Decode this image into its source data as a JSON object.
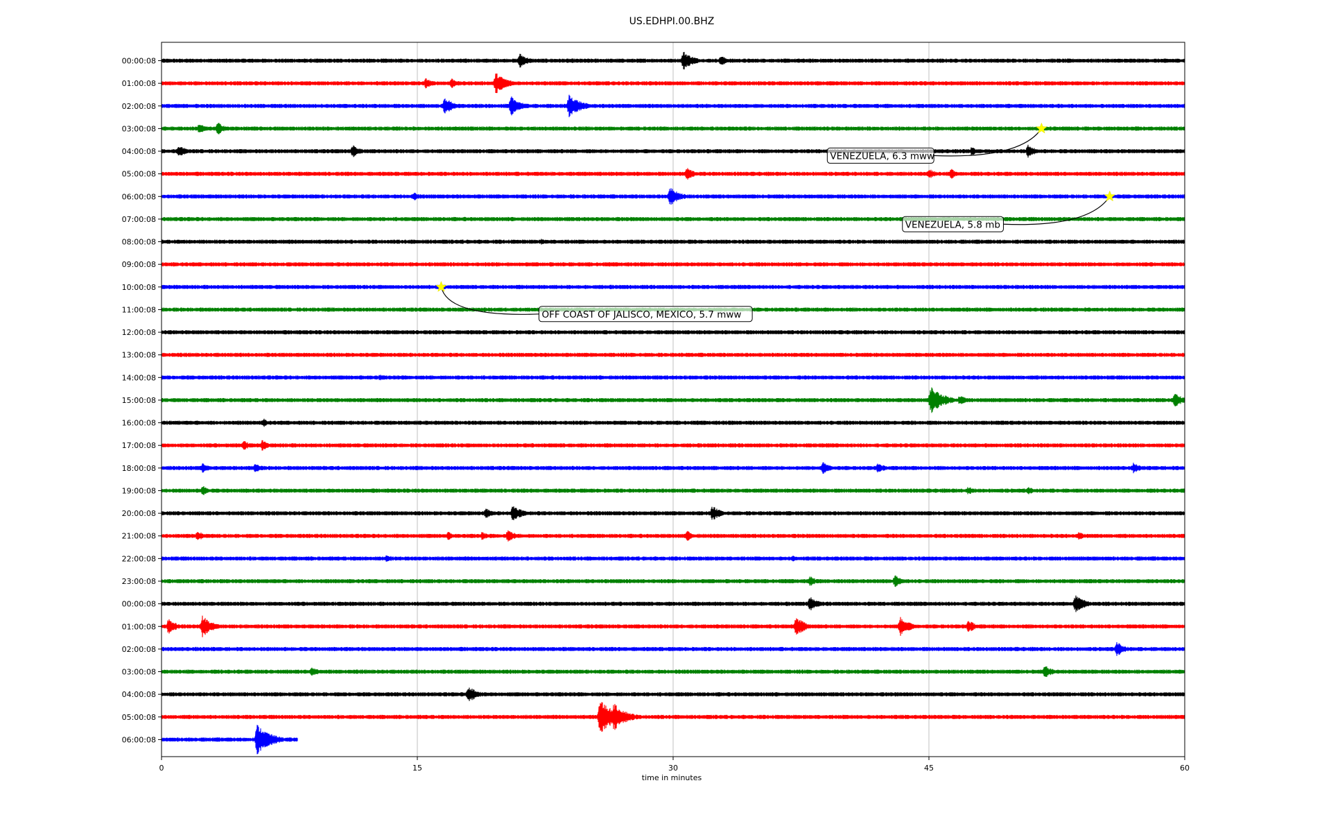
{
  "chart_data": {
    "type": "line",
    "title": "US.EDHPI.00.BHZ",
    "xlabel": "time in minutes",
    "ylabel": "",
    "xlim": [
      0,
      60
    ],
    "x_ticks": [
      0,
      15,
      30,
      45,
      60
    ],
    "vertical_grid": true,
    "line_colors": [
      "#000000",
      "#ff0000",
      "#0000ff",
      "#008000"
    ],
    "row_labels": [
      "00:00:08",
      "01:00:08",
      "02:00:08",
      "03:00:08",
      "04:00:08",
      "05:00:08",
      "06:00:08",
      "07:00:08",
      "08:00:08",
      "09:00:08",
      "10:00:08",
      "11:00:08",
      "12:00:08",
      "13:00:08",
      "14:00:08",
      "15:00:08",
      "16:00:08",
      "17:00:08",
      "18:00:08",
      "19:00:08",
      "20:00:08",
      "21:00:08",
      "22:00:08",
      "23:00:08",
      "00:00:08",
      "01:00:08",
      "02:00:08",
      "03:00:08",
      "04:00:08",
      "05:00:08",
      "06:00:08"
    ],
    "last_row_end_minute": 8,
    "events": [
      {
        "row": 3,
        "minute": 51.6,
        "label": "VENEZUELA, 6.3 mww"
      },
      {
        "row": 6,
        "minute": 55.6,
        "label": "VENEZUELA, 5.8 mb"
      },
      {
        "row": 10,
        "minute": 16.4,
        "label": "OFF COAST OF JALISCO, MEXICO, 5.7 mww"
      }
    ],
    "bursts": [
      {
        "row": 0,
        "minute": 21.0,
        "amp": 0.7
      },
      {
        "row": 0,
        "minute": 30.6,
        "amp": 0.9
      },
      {
        "row": 0,
        "minute": 32.8,
        "amp": 0.5
      },
      {
        "row": 1,
        "minute": 15.5,
        "amp": 0.5
      },
      {
        "row": 1,
        "minute": 17.0,
        "amp": 0.5
      },
      {
        "row": 1,
        "minute": 19.6,
        "amp": 1.0
      },
      {
        "row": 2,
        "minute": 16.6,
        "amp": 0.8
      },
      {
        "row": 2,
        "minute": 20.5,
        "amp": 0.9
      },
      {
        "row": 2,
        "minute": 23.9,
        "amp": 1.1
      },
      {
        "row": 3,
        "minute": 2.2,
        "amp": 0.5
      },
      {
        "row": 3,
        "minute": 3.3,
        "amp": 0.6
      },
      {
        "row": 4,
        "minute": 1.0,
        "amp": 0.6
      },
      {
        "row": 4,
        "minute": 11.2,
        "amp": 0.6
      },
      {
        "row": 4,
        "minute": 47.5,
        "amp": 0.4
      },
      {
        "row": 4,
        "minute": 50.8,
        "amp": 0.6
      },
      {
        "row": 5,
        "minute": 30.8,
        "amp": 0.6
      },
      {
        "row": 5,
        "minute": 45.0,
        "amp": 0.5
      },
      {
        "row": 5,
        "minute": 46.3,
        "amp": 0.5
      },
      {
        "row": 6,
        "minute": 14.8,
        "amp": 0.4
      },
      {
        "row": 6,
        "minute": 29.8,
        "amp": 0.9
      },
      {
        "row": 8,
        "minute": 22.3,
        "amp": 0.3
      },
      {
        "row": 14,
        "minute": 12.8,
        "amp": 0.3
      },
      {
        "row": 15,
        "minute": 45.1,
        "amp": 1.3
      },
      {
        "row": 15,
        "minute": 46.8,
        "amp": 0.5
      },
      {
        "row": 15,
        "minute": 59.4,
        "amp": 0.7
      },
      {
        "row": 16,
        "minute": 6.0,
        "amp": 0.4
      },
      {
        "row": 17,
        "minute": 4.8,
        "amp": 0.5
      },
      {
        "row": 17,
        "minute": 5.9,
        "amp": 0.5
      },
      {
        "row": 18,
        "minute": 2.4,
        "amp": 0.5
      },
      {
        "row": 18,
        "minute": 5.5,
        "amp": 0.5
      },
      {
        "row": 18,
        "minute": 38.8,
        "amp": 0.6
      },
      {
        "row": 18,
        "minute": 42.0,
        "amp": 0.5
      },
      {
        "row": 18,
        "minute": 57.0,
        "amp": 0.5
      },
      {
        "row": 19,
        "minute": 2.4,
        "amp": 0.5
      },
      {
        "row": 19,
        "minute": 47.3,
        "amp": 0.4
      },
      {
        "row": 19,
        "minute": 50.8,
        "amp": 0.4
      },
      {
        "row": 20,
        "minute": 19.0,
        "amp": 0.5
      },
      {
        "row": 20,
        "minute": 20.6,
        "amp": 0.8
      },
      {
        "row": 20,
        "minute": 32.3,
        "amp": 0.7
      },
      {
        "row": 21,
        "minute": 2.1,
        "amp": 0.5
      },
      {
        "row": 21,
        "minute": 16.8,
        "amp": 0.4
      },
      {
        "row": 21,
        "minute": 18.8,
        "amp": 0.4
      },
      {
        "row": 21,
        "minute": 20.3,
        "amp": 0.6
      },
      {
        "row": 21,
        "minute": 30.8,
        "amp": 0.5
      },
      {
        "row": 21,
        "minute": 53.8,
        "amp": 0.4
      },
      {
        "row": 22,
        "minute": 13.2,
        "amp": 0.4
      },
      {
        "row": 22,
        "minute": 37.0,
        "amp": 0.3
      },
      {
        "row": 23,
        "minute": 38.0,
        "amp": 0.5
      },
      {
        "row": 23,
        "minute": 43.0,
        "amp": 0.6
      },
      {
        "row": 24,
        "minute": 38.0,
        "amp": 0.7
      },
      {
        "row": 24,
        "minute": 53.6,
        "amp": 0.9
      },
      {
        "row": 25,
        "minute": 0.4,
        "amp": 0.7
      },
      {
        "row": 25,
        "minute": 2.4,
        "amp": 1.0
      },
      {
        "row": 25,
        "minute": 37.2,
        "amp": 0.9
      },
      {
        "row": 25,
        "minute": 43.3,
        "amp": 0.9
      },
      {
        "row": 25,
        "minute": 47.3,
        "amp": 0.6
      },
      {
        "row": 26,
        "minute": 56.0,
        "amp": 0.7
      },
      {
        "row": 27,
        "minute": 8.8,
        "amp": 0.5
      },
      {
        "row": 27,
        "minute": 51.8,
        "amp": 0.6
      },
      {
        "row": 28,
        "minute": 18.0,
        "amp": 0.8
      },
      {
        "row": 29,
        "minute": 25.7,
        "amp": 1.6
      },
      {
        "row": 29,
        "minute": 26.5,
        "amp": 1.3
      },
      {
        "row": 30,
        "minute": 5.6,
        "amp": 1.4
      }
    ]
  }
}
